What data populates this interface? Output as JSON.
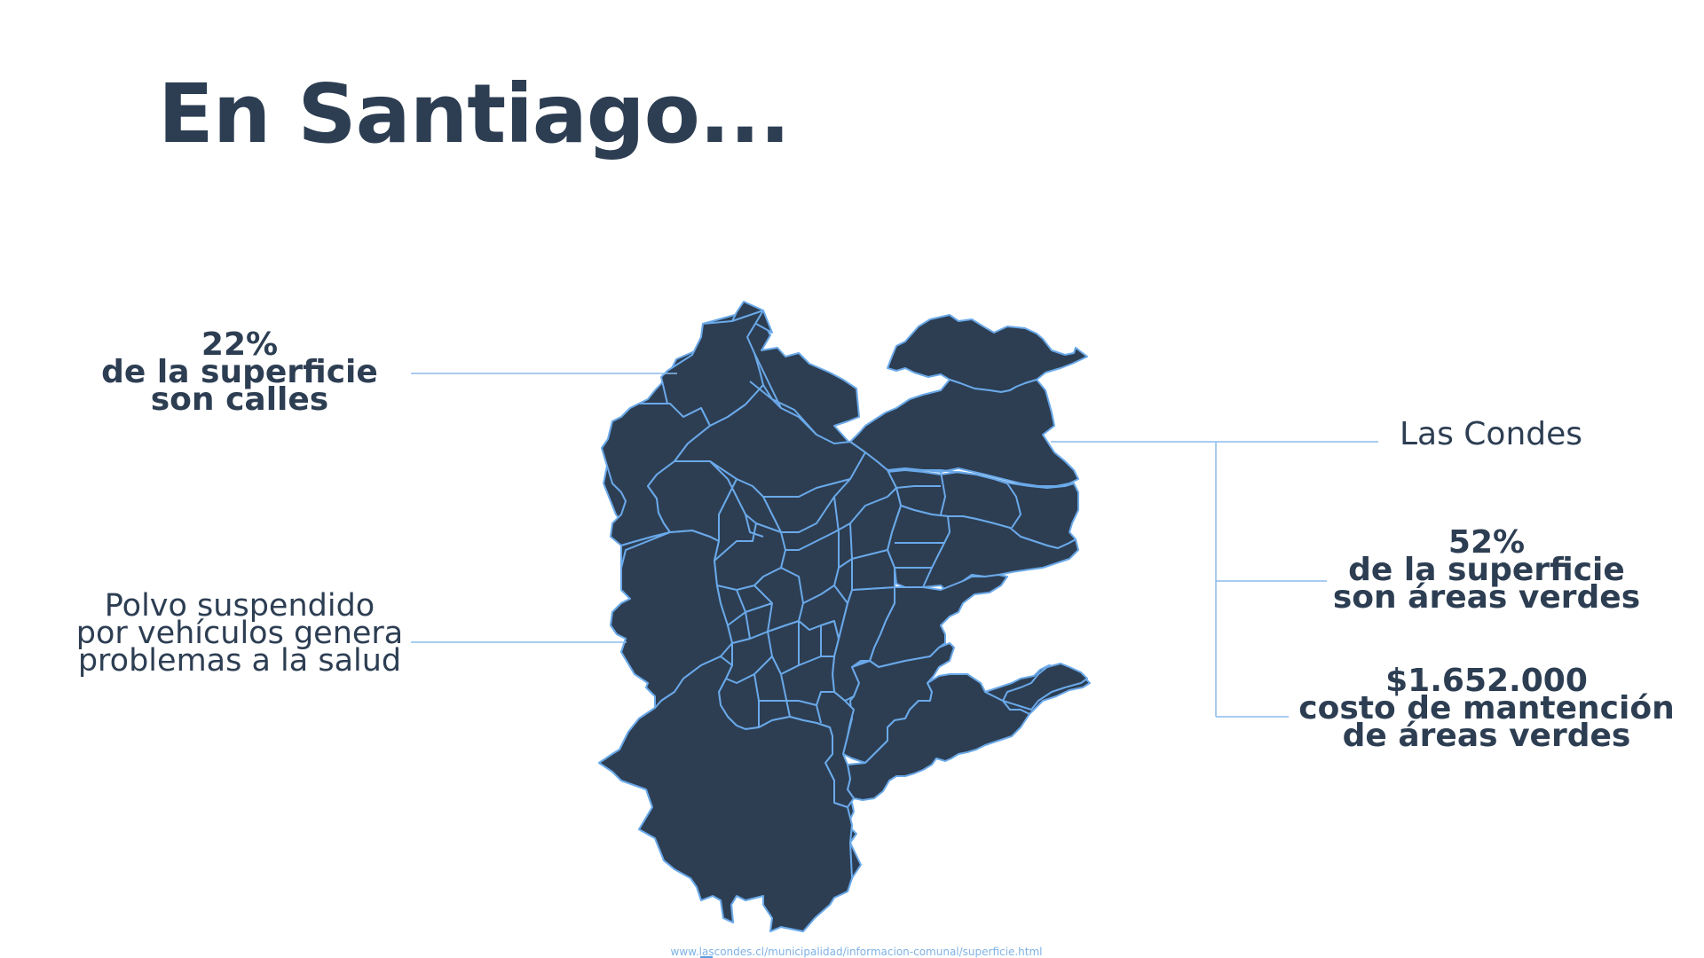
{
  "slide": {
    "title": "En Santiago...",
    "source_url": "www.lascondes.cl/municipalidad/informacion-comunal/superficie.html"
  },
  "callouts": {
    "streets": {
      "value": "22%",
      "line1": "de la superficie",
      "line2": "son calles"
    },
    "dust": {
      "line1": "Polvo suspendido",
      "line2": "por vehículos genera",
      "line3": "problemas a la salud"
    },
    "commune": {
      "name": "Las Condes"
    },
    "green": {
      "value": "52%",
      "line1": "de la superficie",
      "line2": "son áreas verdes"
    },
    "cost": {
      "value": "$1.652.000",
      "line1": "costo de mantención",
      "line2": "de áreas verdes"
    }
  },
  "colors": {
    "text": "#2d3e53",
    "map_fill": "#2d3e53",
    "map_border": "#6aa9e9",
    "leader_line": "#8bbcec",
    "source_text": "#7fb2e5"
  }
}
